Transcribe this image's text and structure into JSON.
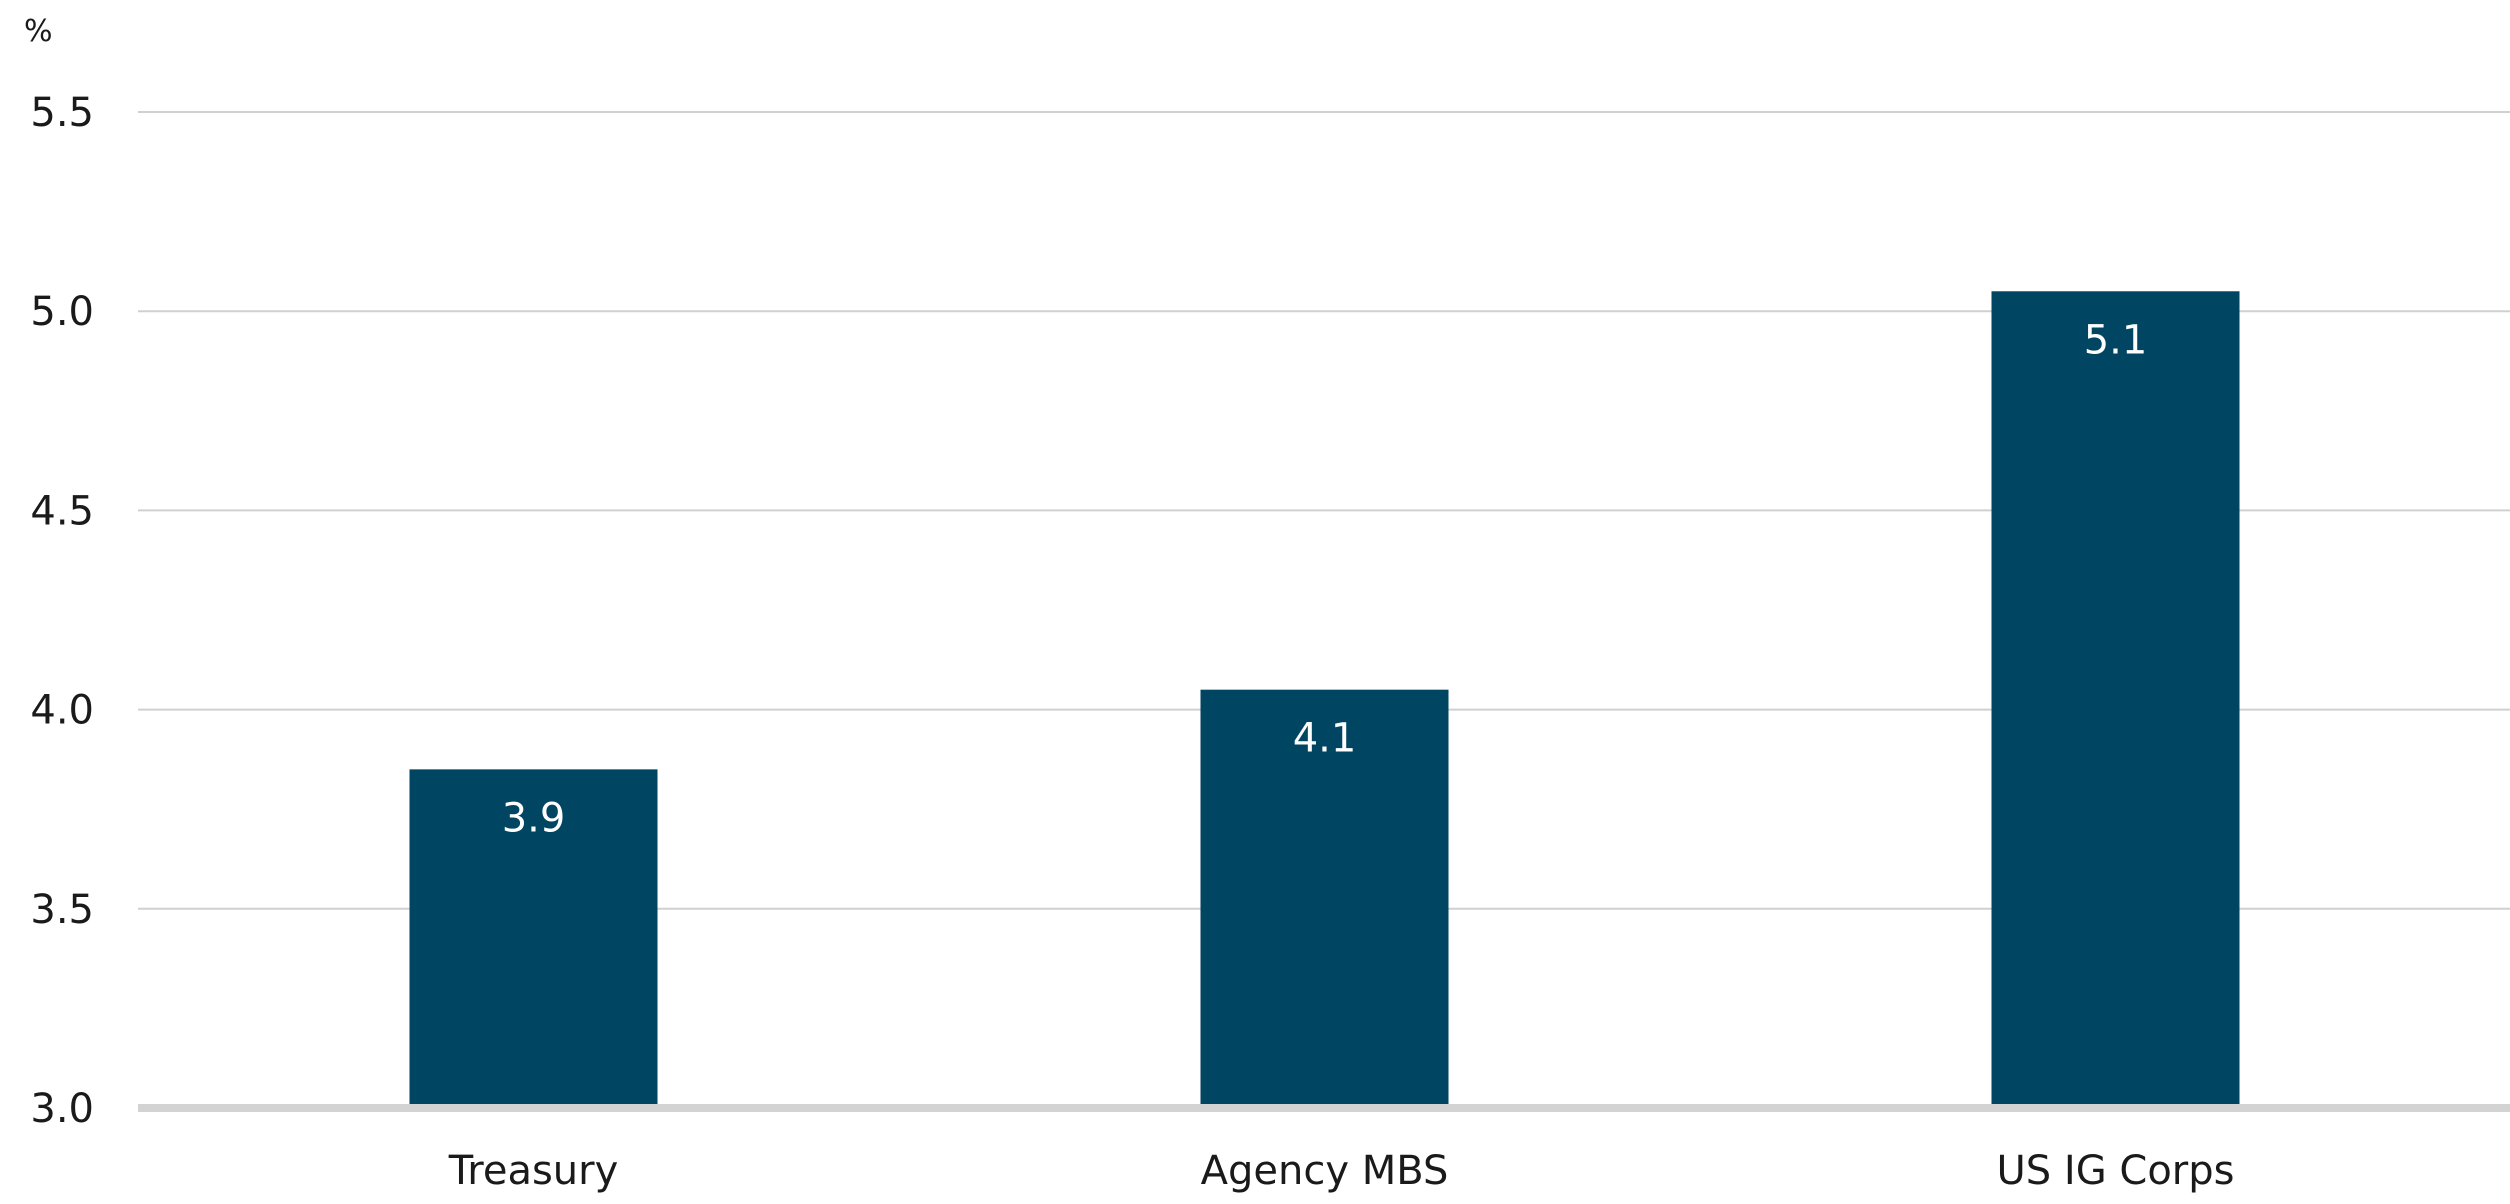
{
  "chart_data": {
    "type": "bar",
    "unit_label": "%",
    "categories": [
      "Treasury",
      "Agency MBS",
      "US IG Corps"
    ],
    "values": [
      3.85,
      4.05,
      5.05
    ],
    "data_labels": [
      "3.9",
      "4.1",
      "5.1"
    ],
    "ylim": [
      3.0,
      5.5
    ],
    "yticks": [
      3.0,
      3.5,
      4.0,
      4.5,
      5.0,
      5.5
    ],
    "ytick_labels": [
      "3.0",
      "3.5",
      "4.0",
      "4.5",
      "5.0",
      "5.5"
    ],
    "grid": true,
    "legend": "none",
    "colors": {
      "bar": "#004562",
      "grid": "#d0d0d0",
      "axis": "#d3d3d3"
    }
  }
}
